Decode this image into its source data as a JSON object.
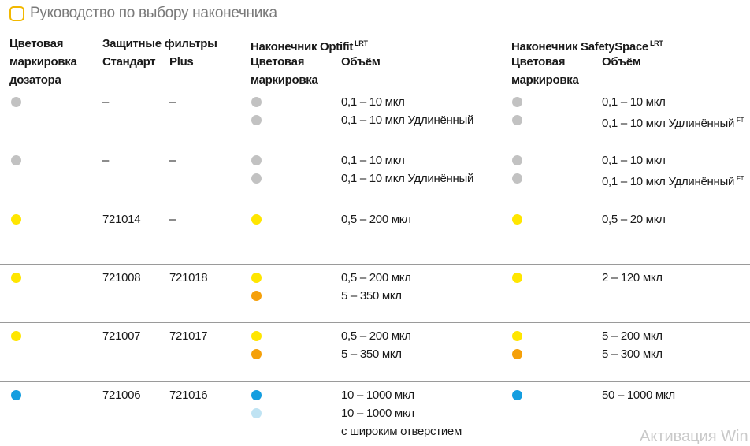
{
  "title": "Руководство по выбору наконечника",
  "colors": {
    "grey": "#c2c2c2",
    "yellow": "#ffe600",
    "orange": "#f5a00a",
    "blue": "#149ee0",
    "light_blue": "#bfe3f3",
    "accent": "#f2b800",
    "separator": "#9a9a9a"
  },
  "headers": {
    "color_marking": [
      "Цветовая",
      "маркировка",
      "дозатора"
    ],
    "filters": "Защитные фильтры",
    "standard": "Стандарт",
    "plus": "Plus",
    "optifit": "Наконечник Optifit",
    "optifit_sup": "LRT",
    "safetyspace": "Наконечник SafetySpace",
    "safetyspace_sup": "LRT",
    "sub_color": [
      "Цветовая",
      "маркировка"
    ],
    "sub_volume": "Объём"
  },
  "rows": [
    {
      "dispenser_color": "grey",
      "standard": "–",
      "plus": "–",
      "optifit": [
        {
          "color": "grey",
          "volume": "0,1 – 10 мкл",
          "sup": ""
        },
        {
          "color": "grey",
          "volume": "0,1 – 10 мкл Удлинённый",
          "sup": ""
        }
      ],
      "safetyspace": [
        {
          "color": "grey",
          "volume": "0,1 – 10 мкл",
          "sup": ""
        },
        {
          "color": "grey",
          "volume": "0,1 – 10 мкл Удлинённый",
          "sup": "FT"
        }
      ]
    },
    {
      "dispenser_color": "grey",
      "standard": "–",
      "plus": "–",
      "optifit": [
        {
          "color": "grey",
          "volume": "0,1 – 10 мкл",
          "sup": ""
        },
        {
          "color": "grey",
          "volume": "0,1 – 10 мкл Удлинённый",
          "sup": ""
        }
      ],
      "safetyspace": [
        {
          "color": "grey",
          "volume": "0,1 – 10 мкл",
          "sup": ""
        },
        {
          "color": "grey",
          "volume": "0,1 – 10 мкл Удлинённый",
          "sup": "FT"
        }
      ]
    },
    {
      "dispenser_color": "yellow",
      "standard": "721014",
      "plus": "–",
      "optifit": [
        {
          "color": "yellow",
          "volume": "0,5 – 200 мкл",
          "sup": ""
        }
      ],
      "safetyspace": [
        {
          "color": "yellow",
          "volume": "0,5 – 20 мкл",
          "sup": ""
        }
      ]
    },
    {
      "dispenser_color": "yellow",
      "standard": "721008",
      "plus": "721018",
      "optifit": [
        {
          "color": "yellow",
          "volume": "0,5 – 200 мкл",
          "sup": ""
        },
        {
          "color": "orange",
          "volume": "5 – 350 мкл",
          "sup": ""
        }
      ],
      "safetyspace": [
        {
          "color": "yellow",
          "volume": "2 – 120 мкл",
          "sup": ""
        }
      ]
    },
    {
      "dispenser_color": "yellow",
      "standard": "721007",
      "plus": "721017",
      "optifit": [
        {
          "color": "yellow",
          "volume": "0,5 – 200 мкл",
          "sup": ""
        },
        {
          "color": "orange",
          "volume": "5 – 350 мкл",
          "sup": ""
        }
      ],
      "safetyspace": [
        {
          "color": "yellow",
          "volume": "5 – 200 мкл",
          "sup": ""
        },
        {
          "color": "orange",
          "volume": "5 – 300 мкл",
          "sup": ""
        }
      ]
    },
    {
      "dispenser_color": "blue",
      "standard": "721006",
      "plus": "721016",
      "optifit": [
        {
          "color": "blue",
          "volume": "10 – 1000 мкл",
          "sup": ""
        },
        {
          "color": "light_blue",
          "volume": "10 – 1000 мкл",
          "sup": ""
        },
        {
          "color": "",
          "volume": "с широким отверстием",
          "sup": ""
        }
      ],
      "safetyspace": [
        {
          "color": "blue",
          "volume": "50 – 1000 мкл",
          "sup": ""
        }
      ]
    }
  ],
  "watermark": "Активация Win"
}
